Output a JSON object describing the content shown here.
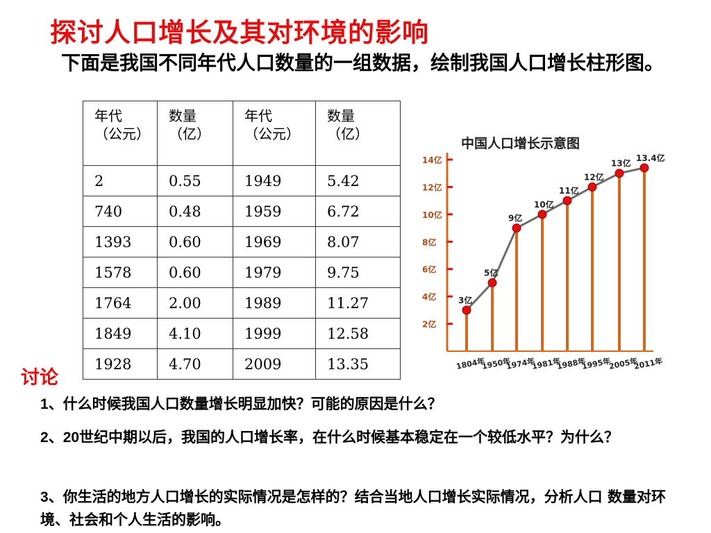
{
  "title": "探讨人口增长及其对环境的影响",
  "intro": "下面是我国不同年代人口数量的一组数据，绘制我国人口增长柱形图。",
  "table": {
    "headers": [
      {
        "line1": "年代",
        "line2": "（公元）"
      },
      {
        "line1": "数量",
        "line2": "（亿）"
      },
      {
        "line1": "年代",
        "line2": "（公元）"
      },
      {
        "line1": "数量",
        "line2": "（亿）"
      }
    ],
    "rows": [
      [
        "2",
        "0.55",
        "1949",
        "5.42"
      ],
      [
        "740",
        "0.48",
        "1959",
        "6.72"
      ],
      [
        "1393",
        "0.60",
        "1969",
        "8.07"
      ],
      [
        "1578",
        "0.60",
        "1979",
        "9.75"
      ],
      [
        "1764",
        "2.00",
        "1989",
        "11.27"
      ],
      [
        "1849",
        "4.10",
        "1999",
        "12.58"
      ],
      [
        "1928",
        "4.70",
        "2009",
        "13.35"
      ]
    ]
  },
  "chart_data": {
    "type": "line",
    "title": "中国人口增长示意图",
    "categories": [
      "1804年",
      "1950年",
      "1974年",
      "1981年",
      "1988年",
      "1995年",
      "2005年",
      "2011年"
    ],
    "values": [
      3,
      5,
      9,
      10,
      11,
      12,
      13,
      13.4
    ],
    "point_labels": [
      "3亿",
      "5亿",
      "9亿",
      "10亿",
      "11亿",
      "12亿",
      "13亿",
      "13.4亿"
    ],
    "y_ticks": [
      "2亿",
      "4亿",
      "6亿",
      "8亿",
      "10亿",
      "12亿",
      "14亿"
    ],
    "y_tick_values": [
      2,
      4,
      6,
      8,
      10,
      12,
      14
    ],
    "ylim": [
      0,
      14
    ],
    "colors": {
      "bars": "#d2691e",
      "points": "#e01010",
      "line": "#6a6a6a"
    }
  },
  "discussion": {
    "label": "讨论",
    "questions": [
      {
        "num": "1",
        "text": "、什么时候我国人口数量增长明显加快？可能的原因是什么？"
      },
      {
        "num": "2",
        "text": "、",
        "bold_part": "20",
        "text2": "世纪中期以后，我国的人口增长率，在什么时候基本稳定在一个较低水平？为什么？"
      },
      {
        "num": "3",
        "text": "、你生活的地方人口增长的实际情况是怎样的？结合当地人口增长实际情况，分析人口 数量对环境、社会和个人生活的影响。"
      }
    ]
  }
}
